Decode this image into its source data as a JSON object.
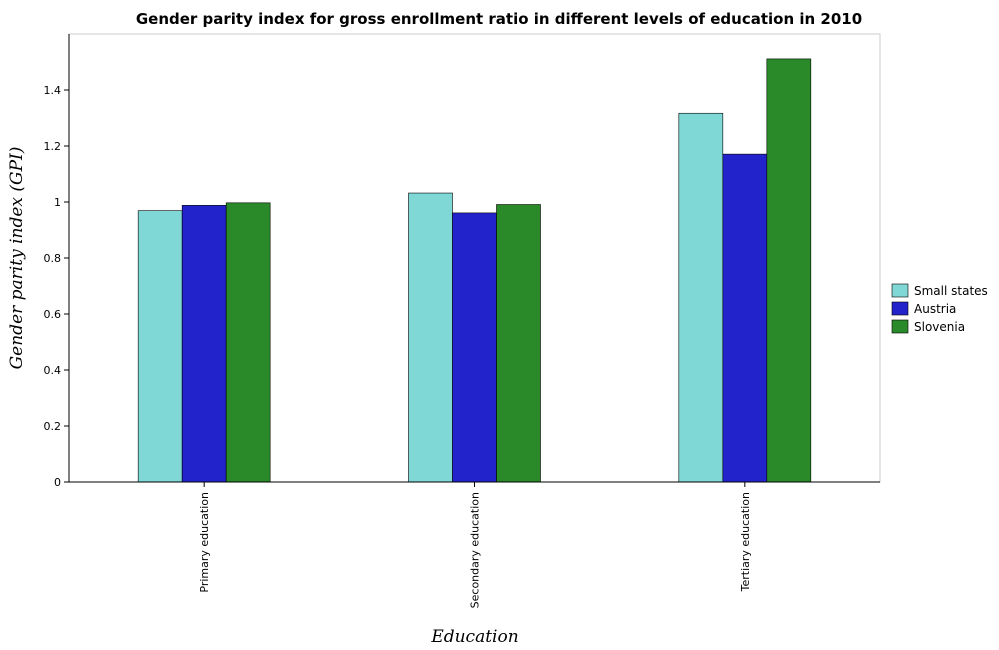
{
  "chart_data": {
    "type": "bar",
    "title": "Gender parity index for gross enrollment ratio in different levels of education in 2010",
    "xlabel": "Education",
    "ylabel": "Gender parity index (GPI)",
    "ylim": [
      0,
      1.6
    ],
    "yticks": [
      0,
      0.2,
      0.4,
      0.6,
      0.8,
      1.0,
      1.2,
      1.4
    ],
    "ytick_labels": [
      "0",
      "0.2",
      "0.4",
      "0.6",
      "0.8",
      "1",
      "1.2",
      "1.4"
    ],
    "categories": [
      "Primary education",
      "Secondary education",
      "Tertiary education"
    ],
    "series": [
      {
        "name": "Small states",
        "color": "#7fd8d6",
        "values": [
          0.969,
          1.032,
          1.317
        ]
      },
      {
        "name": "Austria",
        "color": "#2323cc",
        "values": [
          0.988,
          0.961,
          1.171
        ]
      },
      {
        "name": "Slovenia",
        "color": "#2a8a2a",
        "values": [
          0.997,
          0.991,
          1.511
        ]
      }
    ],
    "legend_position": "right",
    "grid": false
  }
}
